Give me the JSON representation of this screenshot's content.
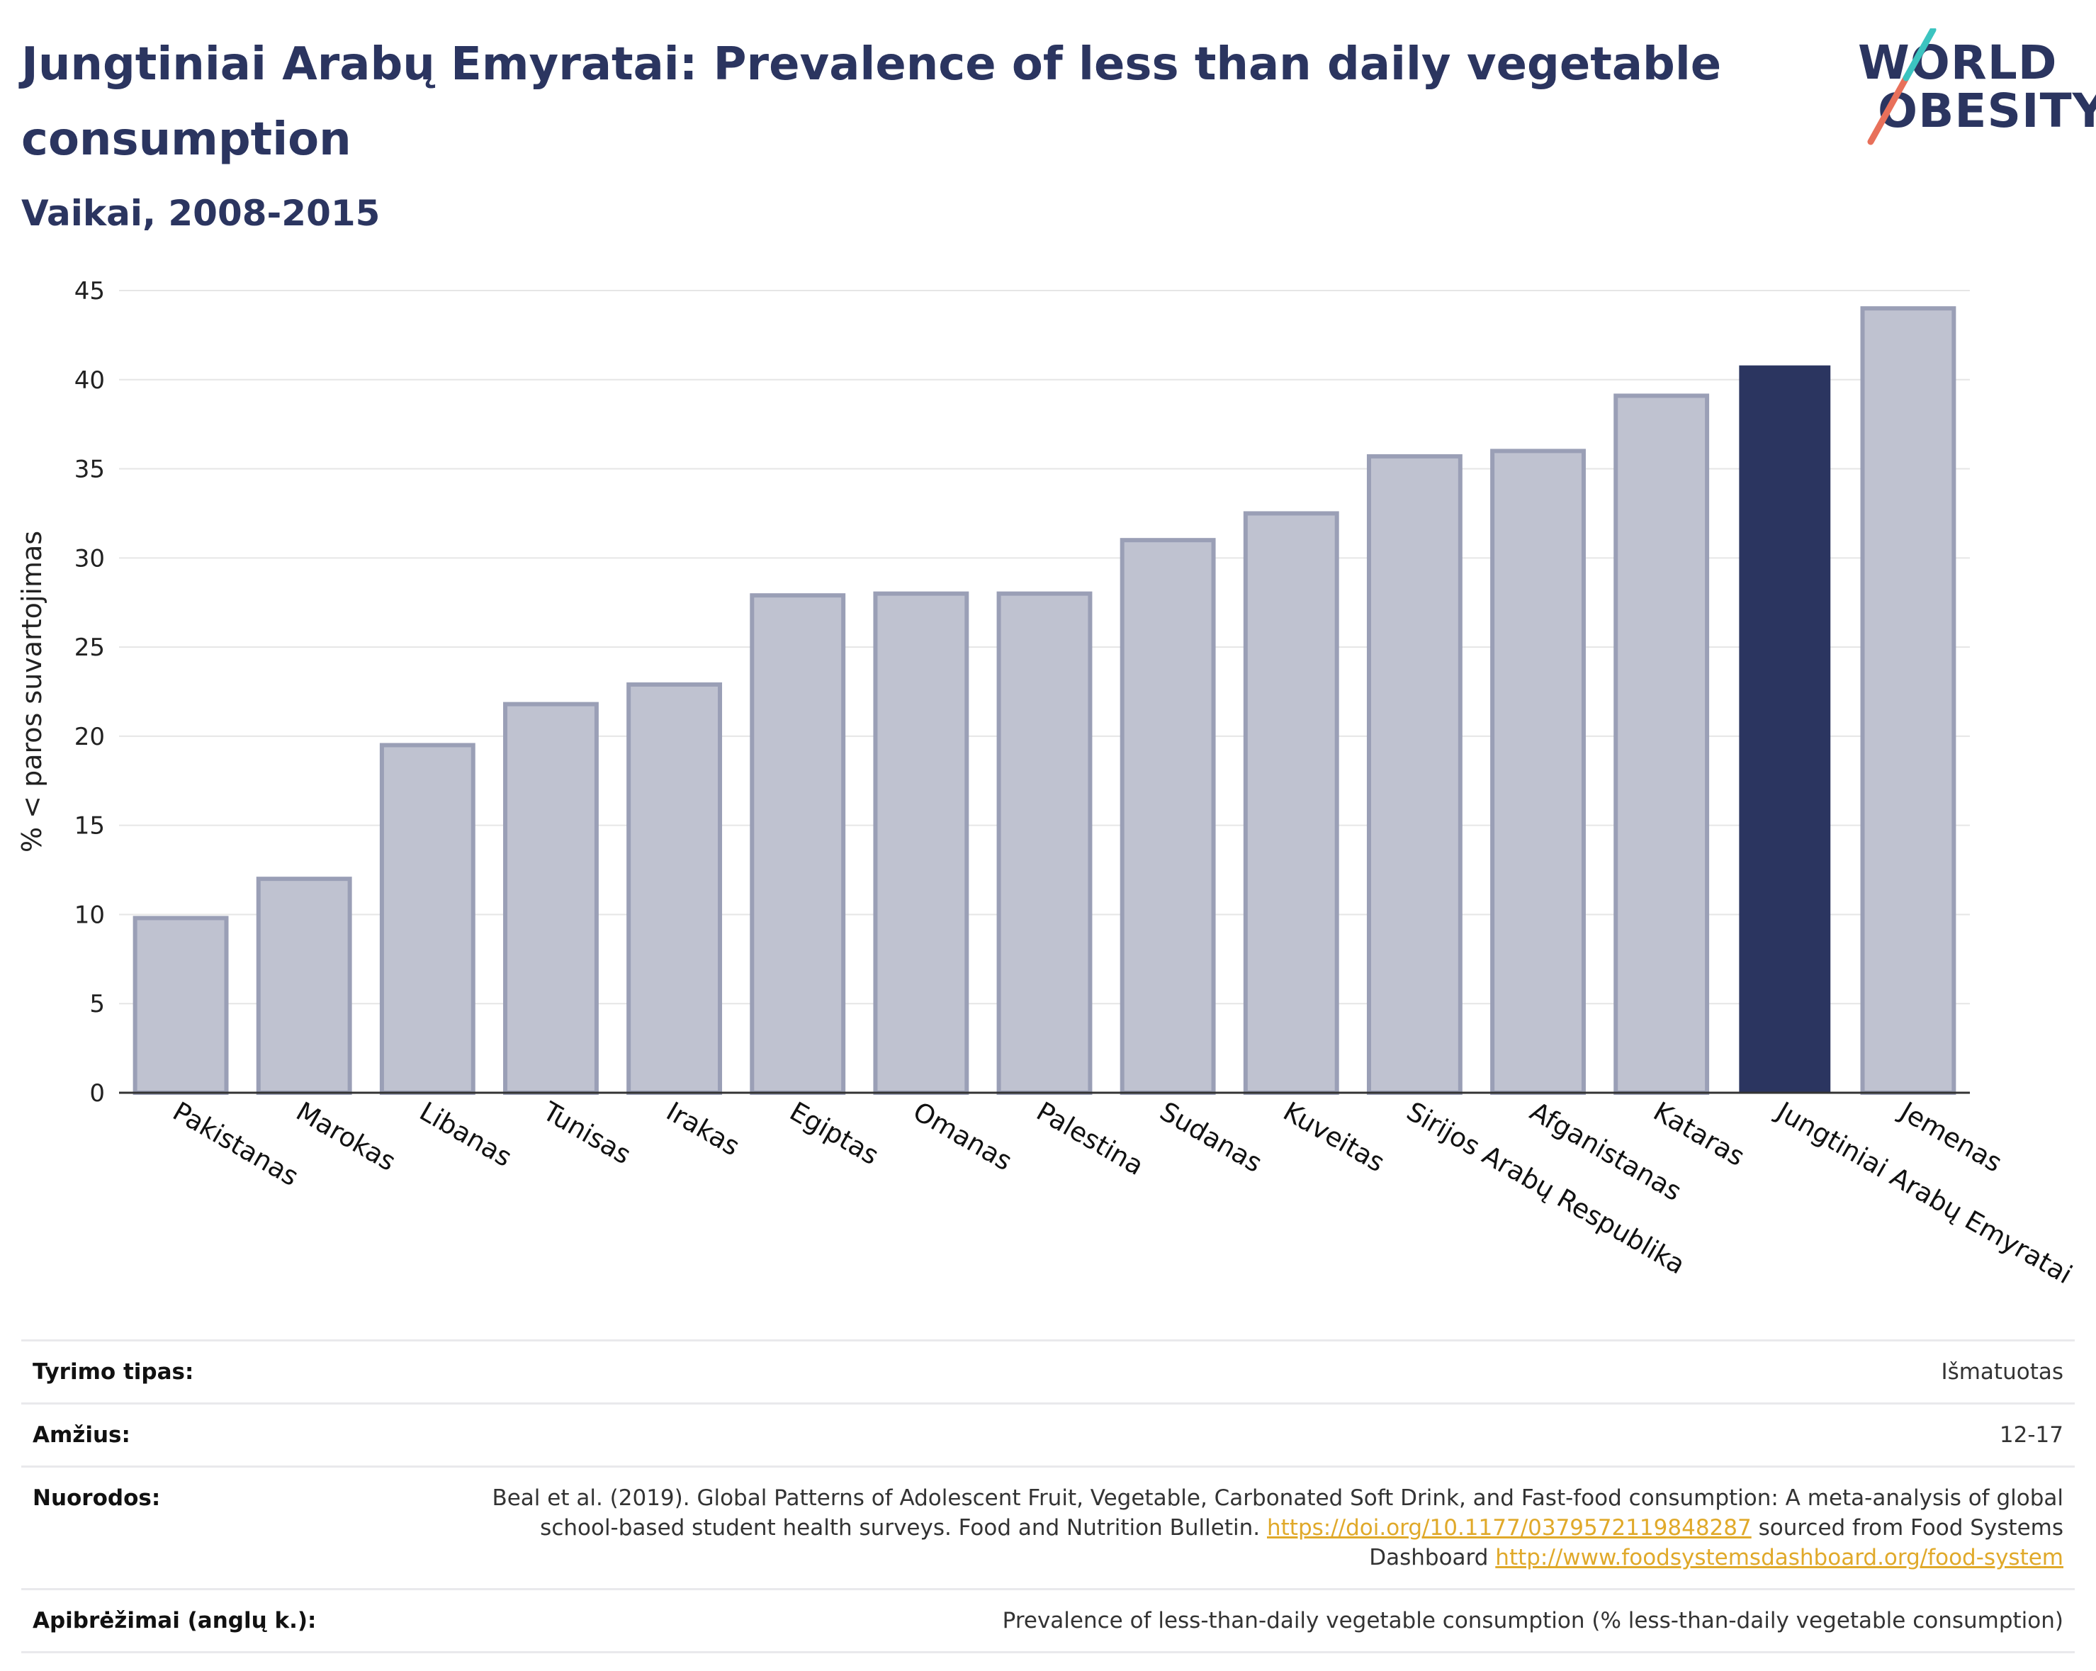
{
  "header": {
    "title": "Jungtiniai Arabų Emyratai: Prevalence of less than daily vegetable consumption",
    "subtitle": "Vaikai, 2008-2015"
  },
  "logo": {
    "line1": "WORLD",
    "line2": "OBESITY"
  },
  "colors": {
    "bar": "#bfc2d0",
    "bar_border": "#9a9fb6",
    "highlight": "#2b3560",
    "grid": "#e6e6e6"
  },
  "chart_data": {
    "type": "bar",
    "title": "Jungtiniai Arabų Emyratai: Prevalence of less than daily vegetable consumption",
    "subtitle": "Vaikai, 2008-2015",
    "xlabel": "",
    "ylabel": "% < paros suvartojimas",
    "ylim": [
      0,
      45
    ],
    "yticks": [
      0,
      5,
      10,
      15,
      20,
      25,
      30,
      35,
      40,
      45
    ],
    "grid": true,
    "highlight": "Jungtiniai Arabų Emyratai",
    "categories": [
      "Pakistanas",
      "Marokas",
      "Libanas",
      "Tunisas",
      "Irakas",
      "Egiptas",
      "Omanas",
      "Palestina",
      "Sudanas",
      "Kuveitas",
      "Sirijos Arabų Respublika",
      "Afganistanas",
      "Kataras",
      "Jungtiniai Arabų Emyratai",
      "Jemenas"
    ],
    "values": [
      9.8,
      12.0,
      19.5,
      21.8,
      22.9,
      27.9,
      28.0,
      28.0,
      31.0,
      32.5,
      35.7,
      36.0,
      39.1,
      40.8,
      44.0
    ]
  },
  "info": {
    "rows": [
      {
        "label": "Tyrimo tipas:",
        "value": "Išmatuotas"
      },
      {
        "label": "Amžius:",
        "value": "12-17"
      },
      {
        "label": "Nuorodos:",
        "text1": "Beal et al. (2019). Global Patterns of Adolescent Fruit, Vegetable, Carbonated Soft Drink, and Fast-food consumption: A meta-analysis of global school-based student health surveys. Food and Nutrition Bulletin.",
        "link1": "https://doi.org/10.1177/0379572119848287",
        "text2": "sourced from Food Systems Dashboard",
        "link2": "http://www.foodsystemsdashboard.org/food-system"
      },
      {
        "label": "Apibrėžimai (anglų k.):",
        "value": "Prevalence of less-than-daily vegetable consumption (% less-than-daily vegetable consumption)"
      }
    ]
  }
}
